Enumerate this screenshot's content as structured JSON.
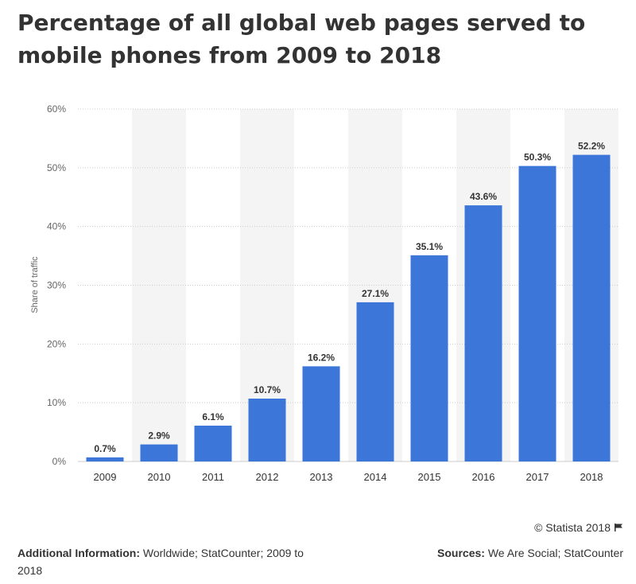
{
  "title": "Percentage of all global web pages served to mobile phones from 2009 to 2018",
  "colors": {
    "bar": "#3d76d9",
    "stripe": "#f4f4f4",
    "grid": "#cccccc",
    "text": "#333333",
    "axis_text": "#666666"
  },
  "chart_data": {
    "type": "bar",
    "categories": [
      "2009",
      "2010",
      "2011",
      "2012",
      "2013",
      "2014",
      "2015",
      "2016",
      "2017",
      "2018"
    ],
    "values": [
      0.7,
      2.9,
      6.1,
      10.7,
      16.2,
      27.1,
      35.1,
      43.6,
      50.3,
      52.2
    ],
    "value_labels": [
      "0.7%",
      "2.9%",
      "6.1%",
      "10.7%",
      "16.2%",
      "27.1%",
      "35.1%",
      "43.6%",
      "50.3%",
      "52.2%"
    ],
    "ylabel": "Share of traffic",
    "xlabel": "",
    "ylim": [
      0,
      60
    ],
    "yticks": [
      0,
      10,
      20,
      30,
      40,
      50,
      60
    ],
    "ytick_labels": [
      "0%",
      "10%",
      "20%",
      "30%",
      "40%",
      "50%",
      "60%"
    ],
    "grid": true
  },
  "footer": {
    "copyright": "© Statista 2018",
    "additional_info_label": "Additional Information:",
    "additional_info_text": "Worldwide; StatCounter; 2009 to 2018",
    "sources_label": "Sources:",
    "sources_text": "We Are Social; StatCounter"
  }
}
